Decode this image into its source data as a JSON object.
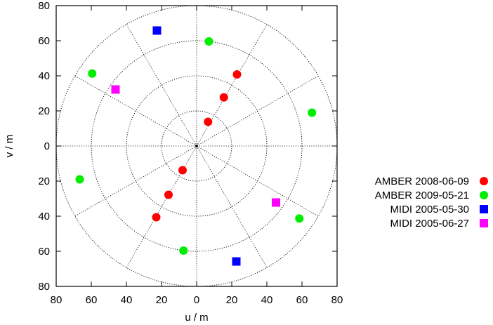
{
  "chart_data": {
    "type": "scatter",
    "xlabel": "u / m",
    "ylabel": "v / m",
    "xlim": [
      -80,
      80
    ],
    "ylim": [
      -80,
      80
    ],
    "x_tick_values": [
      -80,
      -60,
      -40,
      -20,
      0,
      20,
      40,
      60,
      80
    ],
    "x_tick_labels": [
      "80",
      "60",
      "40",
      "20",
      "0",
      "20",
      "40",
      "60",
      "80"
    ],
    "y_tick_values": [
      80,
      60,
      40,
      20,
      0,
      -20,
      -40,
      -60,
      -80
    ],
    "y_tick_labels": [
      "80",
      "60",
      "40",
      "20",
      "0",
      "20",
      "40",
      "60",
      "80"
    ],
    "polar_grid": {
      "rings": [
        20,
        40,
        60,
        80
      ],
      "radial_angles_deg": [
        0,
        30,
        60,
        90,
        120,
        150,
        180,
        210,
        240,
        270,
        300,
        330
      ]
    },
    "legend_position": "right",
    "series": [
      {
        "name": "AMBER 2008-06-09",
        "marker": "circle",
        "color": "#ff0000",
        "points": [
          [
            6.5,
            13.8
          ],
          [
            15.5,
            27.7
          ],
          [
            23,
            40.8
          ],
          [
            -8,
            -13.8
          ],
          [
            -16,
            -27.8
          ],
          [
            -23,
            -40.6
          ]
        ]
      },
      {
        "name": "AMBER 2009-05-21",
        "marker": "circle",
        "color": "#00ee00",
        "points": [
          [
            7,
            59.6
          ],
          [
            -59.5,
            41.3
          ],
          [
            65.7,
            19
          ],
          [
            -66.6,
            -19
          ],
          [
            -7.5,
            -59.6
          ],
          [
            58.5,
            -41.3
          ]
        ]
      },
      {
        "name": "MIDI 2005-05-30",
        "marker": "square",
        "color": "#0000ff",
        "points": [
          [
            -22.6,
            65.8
          ],
          [
            22.6,
            -65.8
          ]
        ]
      },
      {
        "name": "MIDI 2005-06-27",
        "marker": "square",
        "color": "#ff00ff",
        "points": [
          [
            -46.2,
            32.2
          ],
          [
            45.2,
            -32.2
          ]
        ]
      }
    ]
  }
}
